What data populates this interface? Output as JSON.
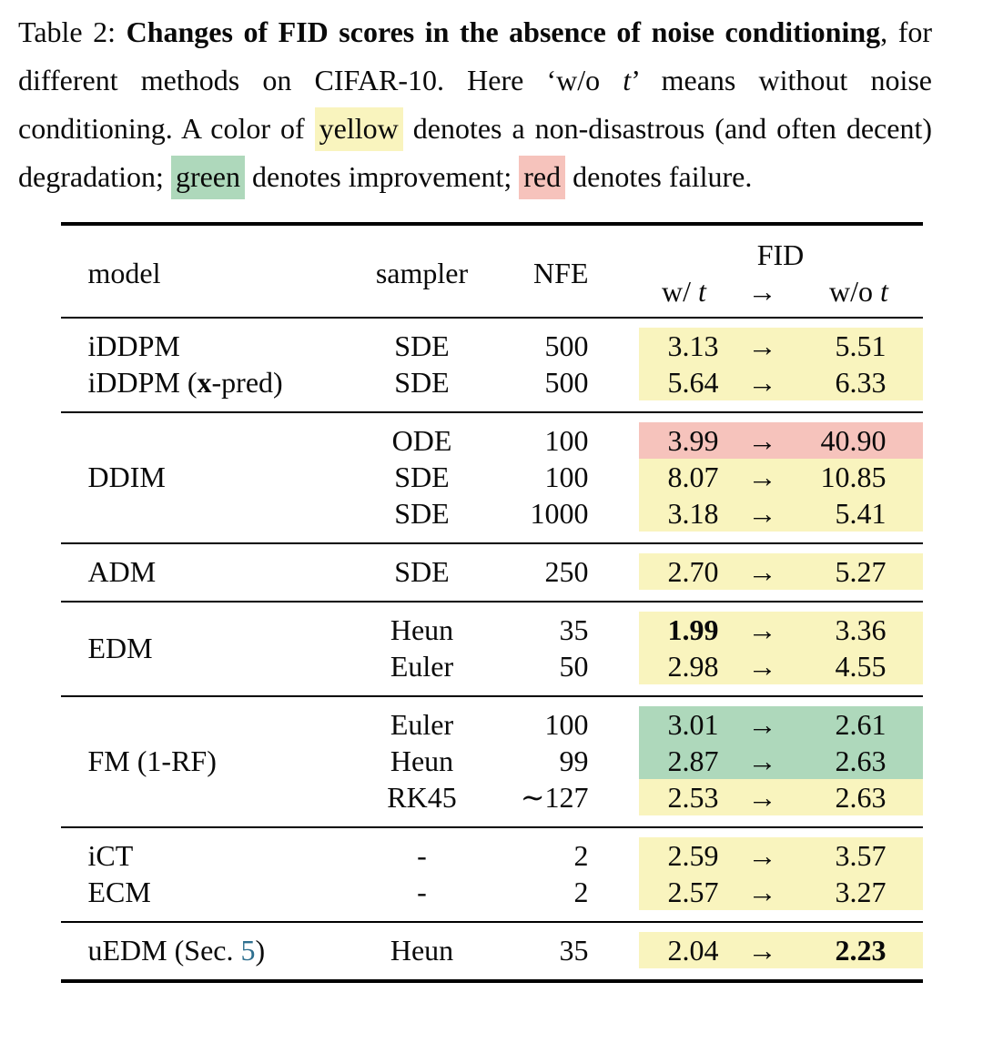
{
  "caption": [
    {
      "t": "Table 2: ",
      "s": ""
    },
    {
      "t": "Changes of FID scores in the absence of noise conditioning",
      "s": "b"
    },
    {
      "t": ", for different methods on CIFAR-10. Here ‘w/o ",
      "s": ""
    },
    {
      "t": "t",
      "s": "i"
    },
    {
      "t": "’ means without noise conditioning. A color of ",
      "s": ""
    },
    {
      "t": "yellow",
      "s": "hl-yellow"
    },
    {
      "t": " denotes a non-disastrous (and often decent) degradation; ",
      "s": ""
    },
    {
      "t": "green",
      "s": "hl-green"
    },
    {
      "t": " denotes improvement; ",
      "s": ""
    },
    {
      "t": "red",
      "s": "hl-red"
    },
    {
      "t": " denotes failure.",
      "s": ""
    }
  ],
  "colors": {
    "yellow": "#f9f4be",
    "green": "#aed8bb",
    "red": "#f6c3bc",
    "link": "#2e6f8f"
  },
  "table": {
    "header": {
      "model": "model",
      "sampler": "sampler",
      "nfe": "NFE",
      "fid": "FID",
      "w": [
        {
          "t": "w/ ",
          "s": ""
        },
        {
          "t": "t",
          "s": "i"
        }
      ],
      "arrow": "→",
      "wo": [
        {
          "t": "w/o ",
          "s": ""
        },
        {
          "t": "t",
          "s": "i"
        }
      ]
    },
    "arrow": "→",
    "groups": [
      {
        "rows": [
          {
            "model": "iDDPM",
            "sampler": "SDE",
            "nfe": "500",
            "w": "3.13",
            "wo": "5.51",
            "color": "yellow"
          },
          {
            "model": [
              {
                "t": "iDDPM (",
                "s": ""
              },
              {
                "t": "x",
                "s": "b"
              },
              {
                "t": "-pred)",
                "s": ""
              }
            ],
            "sampler": "SDE",
            "nfe": "500",
            "w": "5.64",
            "wo": "6.33",
            "color": "yellow"
          }
        ]
      },
      {
        "model": "DDIM",
        "rows": [
          {
            "sampler": "ODE",
            "nfe": "100",
            "w": "3.99",
            "wo": "40.90",
            "color": "red"
          },
          {
            "sampler": "SDE",
            "nfe": "100",
            "w": "8.07",
            "wo": "10.85",
            "color": "yellow"
          },
          {
            "sampler": "SDE",
            "nfe": "1000",
            "w": "3.18",
            "wo": "5.41",
            "color": "yellow"
          }
        ]
      },
      {
        "rows": [
          {
            "model": "ADM",
            "sampler": "SDE",
            "nfe": "250",
            "w": "2.70",
            "wo": "5.27",
            "color": "yellow"
          }
        ]
      },
      {
        "model": "EDM",
        "rows": [
          {
            "sampler": "Heun",
            "nfe": "35",
            "w": "1.99",
            "w_bold": true,
            "wo": "3.36",
            "color": "yellow"
          },
          {
            "sampler": "Euler",
            "nfe": "50",
            "w": "2.98",
            "wo": "4.55",
            "color": "yellow"
          }
        ]
      },
      {
        "model": "FM (1-RF)",
        "rows": [
          {
            "sampler": "Euler",
            "nfe": "100",
            "w": "3.01",
            "wo": "2.61",
            "color": "green"
          },
          {
            "sampler": "Heun",
            "nfe": "99",
            "w": "2.87",
            "wo": "2.63",
            "color": "green"
          },
          {
            "sampler": "RK45",
            "nfe": "∼127",
            "w": "2.53",
            "wo": "2.63",
            "color": "yellow"
          }
        ]
      },
      {
        "rows": [
          {
            "model": "iCT",
            "sampler": "-",
            "nfe": "2",
            "w": "2.59",
            "wo": "3.57",
            "color": "yellow"
          },
          {
            "model": "ECM",
            "sampler": "-",
            "nfe": "2",
            "w": "2.57",
            "wo": "3.27",
            "color": "yellow"
          }
        ]
      },
      {
        "rows": [
          {
            "model": [
              {
                "t": "uEDM (Sec. ",
                "s": ""
              },
              {
                "t": "5",
                "s": "link"
              },
              {
                "t": ")",
                "s": ""
              }
            ],
            "sampler": "Heun",
            "nfe": "35",
            "w": "2.04",
            "wo": "2.23",
            "wo_bold": true,
            "color": "yellow"
          }
        ]
      }
    ]
  }
}
